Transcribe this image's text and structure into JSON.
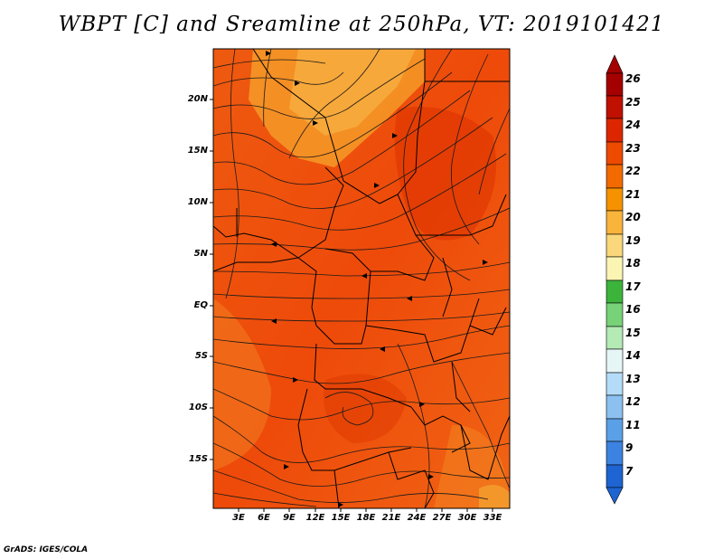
{
  "title": "WBPT [C] and Sreamline at 250hPa, VT: 2019101421",
  "credit": "GrADS: IGES/COLA",
  "map": {
    "variable": "Wet-bulb potential temperature",
    "units": "C",
    "level": "250hPa",
    "valid_time": "2019101421",
    "lat_range": [
      -20,
      24
    ],
    "lon_range": [
      0,
      35
    ],
    "lat_ticks": [
      "20N",
      "15N",
      "10N",
      "5N",
      "EQ",
      "5S",
      "10S",
      "15S"
    ],
    "lon_ticks": [
      "3E",
      "6E",
      "9E",
      "12E",
      "15E",
      "18E",
      "21E",
      "24E",
      "27E",
      "30E",
      "33E"
    ]
  },
  "colorbar": {
    "labels": [
      "26",
      "25",
      "24",
      "23",
      "22",
      "21",
      "20",
      "19",
      "18",
      "17",
      "16",
      "15",
      "14",
      "13",
      "12",
      "11",
      "9",
      "7"
    ],
    "colors": [
      "#a50000",
      "#c01000",
      "#dc2600",
      "#ee4a00",
      "#f26a00",
      "#f69200",
      "#f9b43c",
      "#fad77a",
      "#fbf5b4",
      "#3cb43c",
      "#78d278",
      "#b4eab4",
      "#e6f6f6",
      "#b4dcf8",
      "#8cc0f0",
      "#5aa0e6",
      "#3c82e0",
      "#1e64d2"
    ]
  }
}
